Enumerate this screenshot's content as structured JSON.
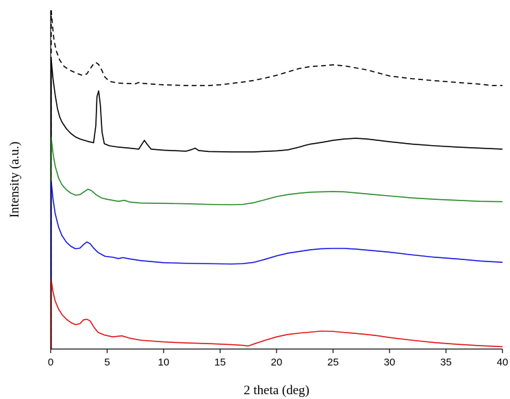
{
  "chart_data": {
    "type": "line",
    "title": "",
    "xlabel": "2 theta (deg)",
    "ylabel": "Intensity (a.u.)",
    "xlim": [
      0,
      40
    ],
    "ylim": [
      0,
      100
    ],
    "xticks": [
      0,
      5,
      10,
      15,
      20,
      25,
      30,
      35,
      40
    ],
    "yticks_shown": false,
    "grid": false,
    "legend": "none",
    "series": [
      {
        "color": "#000000",
        "dashed": true,
        "points": [
          [
            0.05,
            100
          ],
          [
            0.15,
            96
          ],
          [
            0.3,
            91
          ],
          [
            0.5,
            88
          ],
          [
            0.8,
            85.3
          ],
          [
            1.2,
            83.4
          ],
          [
            1.7,
            82.3
          ],
          [
            2.3,
            81.4
          ],
          [
            2.8,
            80.8
          ],
          [
            3.2,
            81.2
          ],
          [
            3.5,
            82.7
          ],
          [
            3.8,
            84.2
          ],
          [
            4.0,
            84.6
          ],
          [
            4.25,
            84
          ],
          [
            4.5,
            82.5
          ],
          [
            4.8,
            80.3
          ],
          [
            5.2,
            79
          ],
          [
            6,
            78.5
          ],
          [
            7.5,
            78.3
          ],
          [
            7.9,
            78.8
          ],
          [
            8.2,
            78.4
          ],
          [
            9,
            78.2
          ],
          [
            10,
            78
          ],
          [
            12,
            77.8
          ],
          [
            14,
            77.8
          ],
          [
            15,
            78
          ],
          [
            16,
            78.4
          ],
          [
            17,
            78.8
          ],
          [
            18,
            79.3
          ],
          [
            19,
            80
          ],
          [
            20,
            80.8
          ],
          [
            21,
            81.8
          ],
          [
            22,
            82.8
          ],
          [
            23,
            83.4
          ],
          [
            24,
            83.6
          ],
          [
            25,
            83.9
          ],
          [
            26,
            83.6
          ],
          [
            27,
            83
          ],
          [
            28,
            82.4
          ],
          [
            29,
            81.5
          ],
          [
            30,
            80.6
          ],
          [
            32,
            79.8
          ],
          [
            34,
            79.2
          ],
          [
            36,
            78.7
          ],
          [
            38,
            78.2
          ],
          [
            39,
            77.8
          ],
          [
            40,
            77.8
          ]
        ]
      },
      {
        "color": "#000000",
        "dashed": false,
        "points": [
          [
            0.05,
            85.5
          ],
          [
            0.2,
            80
          ],
          [
            0.4,
            75
          ],
          [
            0.6,
            71
          ],
          [
            0.8,
            68.5
          ],
          [
            1.0,
            67
          ],
          [
            1.4,
            65
          ],
          [
            1.8,
            63.6
          ],
          [
            2.2,
            62.6
          ],
          [
            2.6,
            62
          ],
          [
            3.0,
            61.6
          ],
          [
            3.4,
            61.2
          ],
          [
            3.8,
            60.9
          ],
          [
            4.0,
            66
          ],
          [
            4.1,
            74.5
          ],
          [
            4.25,
            76.2
          ],
          [
            4.4,
            72
          ],
          [
            4.55,
            64
          ],
          [
            4.75,
            60.6
          ],
          [
            5.2,
            60
          ],
          [
            6,
            59.6
          ],
          [
            7,
            59.3
          ],
          [
            7.8,
            59
          ],
          [
            8.1,
            60.6
          ],
          [
            8.3,
            61.6
          ],
          [
            8.55,
            60.4
          ],
          [
            8.9,
            59
          ],
          [
            10,
            58.7
          ],
          [
            12,
            58.4
          ],
          [
            12.5,
            58.9
          ],
          [
            12.8,
            59.3
          ],
          [
            13.1,
            58.6
          ],
          [
            14,
            58.3
          ],
          [
            16,
            58.2
          ],
          [
            18,
            58.2
          ],
          [
            20,
            58.5
          ],
          [
            21,
            58.8
          ],
          [
            22,
            59.6
          ],
          [
            22.5,
            60.1
          ],
          [
            23,
            60.5
          ],
          [
            24,
            61
          ],
          [
            25,
            61.6
          ],
          [
            26,
            62
          ],
          [
            27,
            62.2
          ],
          [
            28,
            62
          ],
          [
            29,
            61.6
          ],
          [
            30,
            61.2
          ],
          [
            32,
            60.5
          ],
          [
            34,
            60
          ],
          [
            36,
            59.6
          ],
          [
            38,
            59.3
          ],
          [
            40,
            59
          ]
        ]
      },
      {
        "color": "#2a8a2a",
        "dashed": false,
        "points": [
          [
            0.05,
            62.4
          ],
          [
            0.2,
            58
          ],
          [
            0.4,
            54
          ],
          [
            0.7,
            50.5
          ],
          [
            1.0,
            48.5
          ],
          [
            1.4,
            47
          ],
          [
            1.8,
            46
          ],
          [
            2.2,
            45.4
          ],
          [
            2.6,
            45.6
          ],
          [
            3.0,
            46.5
          ],
          [
            3.3,
            47.2
          ],
          [
            3.6,
            46.8
          ],
          [
            4.0,
            45.6
          ],
          [
            4.5,
            44.6
          ],
          [
            5,
            44.2
          ],
          [
            6,
            43.6
          ],
          [
            6.5,
            43.9
          ],
          [
            7,
            43.4
          ],
          [
            8,
            43.1
          ],
          [
            10,
            43
          ],
          [
            12,
            42.9
          ],
          [
            14,
            42.7
          ],
          [
            16,
            42.6
          ],
          [
            17,
            42.7
          ],
          [
            18,
            43.2
          ],
          [
            19,
            44.1
          ],
          [
            20,
            45
          ],
          [
            21,
            45.6
          ],
          [
            22,
            46
          ],
          [
            23,
            46.3
          ],
          [
            24,
            46.4
          ],
          [
            25,
            46.5
          ],
          [
            26,
            46.4
          ],
          [
            27,
            46.1
          ],
          [
            28,
            45.8
          ],
          [
            29,
            45.5
          ],
          [
            30,
            45.2
          ],
          [
            32,
            44.6
          ],
          [
            34,
            44.2
          ],
          [
            36,
            43.9
          ],
          [
            38,
            43.6
          ],
          [
            40,
            43.5
          ]
        ]
      },
      {
        "color": "#1414e6",
        "dashed": false,
        "points": [
          [
            0.05,
            49.5
          ],
          [
            0.2,
            44.5
          ],
          [
            0.4,
            40
          ],
          [
            0.7,
            36
          ],
          [
            1.0,
            33.5
          ],
          [
            1.4,
            31.5
          ],
          [
            1.8,
            30.3
          ],
          [
            2.2,
            29.6
          ],
          [
            2.6,
            29.8
          ],
          [
            2.9,
            30.8
          ],
          [
            3.2,
            31.6
          ],
          [
            3.5,
            31.1
          ],
          [
            3.8,
            29.8
          ],
          [
            4.2,
            28.5
          ],
          [
            4.8,
            27.4
          ],
          [
            5.5,
            27.1
          ],
          [
            6,
            26.7
          ],
          [
            6.4,
            27
          ],
          [
            7,
            26.6
          ],
          [
            8,
            26.1
          ],
          [
            10,
            25.5
          ],
          [
            12,
            25.3
          ],
          [
            14,
            25.2
          ],
          [
            16,
            25.1
          ],
          [
            17,
            25.2
          ],
          [
            18,
            25.6
          ],
          [
            19,
            26.5
          ],
          [
            20,
            27.5
          ],
          [
            21,
            28.3
          ],
          [
            22,
            28.8
          ],
          [
            23,
            29.3
          ],
          [
            24,
            29.6
          ],
          [
            25,
            29.7
          ],
          [
            26,
            29.7
          ],
          [
            27,
            29.5
          ],
          [
            28,
            29.2
          ],
          [
            29,
            28.9
          ],
          [
            30,
            28.6
          ],
          [
            32,
            27.8
          ],
          [
            34,
            27.1
          ],
          [
            36,
            26.6
          ],
          [
            38,
            26
          ],
          [
            40,
            25.6
          ]
        ]
      },
      {
        "color": "#e01414",
        "dashed": false,
        "points": [
          [
            0.05,
            20.5
          ],
          [
            0.2,
            17
          ],
          [
            0.4,
            14.2
          ],
          [
            0.7,
            11.8
          ],
          [
            1.0,
            10.2
          ],
          [
            1.4,
            8.8
          ],
          [
            1.8,
            7.8
          ],
          [
            2.2,
            7.2
          ],
          [
            2.6,
            7.5
          ],
          [
            2.9,
            8.6
          ],
          [
            3.2,
            8.8
          ],
          [
            3.5,
            8.3
          ],
          [
            3.8,
            6.6
          ],
          [
            4.2,
            4.9
          ],
          [
            4.8,
            4.1
          ],
          [
            5.5,
            3.6
          ],
          [
            6.3,
            3.9
          ],
          [
            7,
            3.2
          ],
          [
            8,
            2.6
          ],
          [
            10,
            2.1
          ],
          [
            12,
            1.8
          ],
          [
            14,
            1.6
          ],
          [
            16,
            1.3
          ],
          [
            17,
            1.1
          ],
          [
            17.5,
            0.9
          ],
          [
            18,
            1.5
          ],
          [
            19,
            2.6
          ],
          [
            20,
            3.6
          ],
          [
            21,
            4.3
          ],
          [
            22,
            4.7
          ],
          [
            23,
            5
          ],
          [
            24,
            5.3
          ],
          [
            25,
            5.2
          ],
          [
            26,
            4.9
          ],
          [
            27,
            4.6
          ],
          [
            28,
            4.3
          ],
          [
            29,
            3.9
          ],
          [
            30,
            3.4
          ],
          [
            32,
            2.6
          ],
          [
            34,
            1.9
          ],
          [
            36,
            1.4
          ],
          [
            38,
            1
          ],
          [
            40,
            0.7
          ]
        ]
      }
    ]
  }
}
